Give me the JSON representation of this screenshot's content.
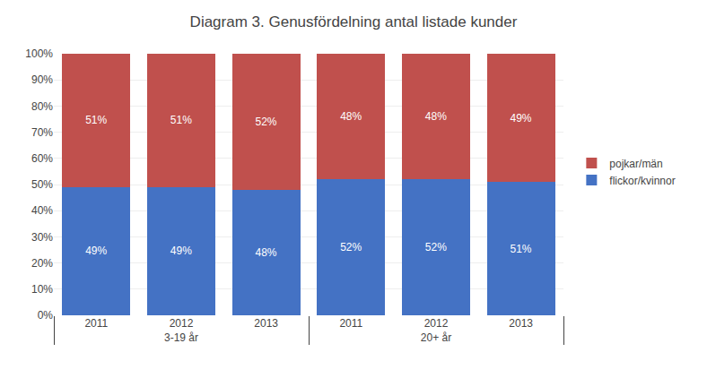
{
  "chart_data": {
    "type": "bar",
    "title": "Diagram 3. Genusfördelning antal listade kunder",
    "categories": [
      "2011",
      "2012",
      "2013",
      "2011",
      "2012",
      "2013"
    ],
    "groups": [
      {
        "name": "3-19 år",
        "categories": [
          "2011",
          "2012",
          "2013"
        ]
      },
      {
        "name": "20+ år",
        "categories": [
          "2011",
          "2012",
          "2013"
        ]
      }
    ],
    "series": [
      {
        "name": "flickor/kvinnor",
        "color": "#4472C4",
        "values": [
          49,
          49,
          48,
          52,
          52,
          51
        ],
        "value_labels": [
          "49%",
          "49%",
          "48%",
          "52%",
          "52%",
          "51%"
        ]
      },
      {
        "name": "pojkar/män",
        "color": "#C0504D",
        "values": [
          51,
          51,
          52,
          48,
          48,
          49
        ],
        "value_labels": [
          "51%",
          "51%",
          "52%",
          "48%",
          "48%",
          "49%"
        ]
      }
    ],
    "stacked": true,
    "data_labels": true,
    "ylim": [
      0,
      100
    ],
    "yticks": [
      {
        "value": 0,
        "label": "0%"
      },
      {
        "value": 10,
        "label": "10%"
      },
      {
        "value": 20,
        "label": "20%"
      },
      {
        "value": 30,
        "label": "30%"
      },
      {
        "value": 40,
        "label": "40%"
      },
      {
        "value": 50,
        "label": "50%"
      },
      {
        "value": 60,
        "label": "60%"
      },
      {
        "value": 70,
        "label": "70%"
      },
      {
        "value": 80,
        "label": "80%"
      },
      {
        "value": 90,
        "label": "90%"
      },
      {
        "value": 100,
        "label": "100%"
      }
    ],
    "grid": true,
    "legend": "right"
  }
}
